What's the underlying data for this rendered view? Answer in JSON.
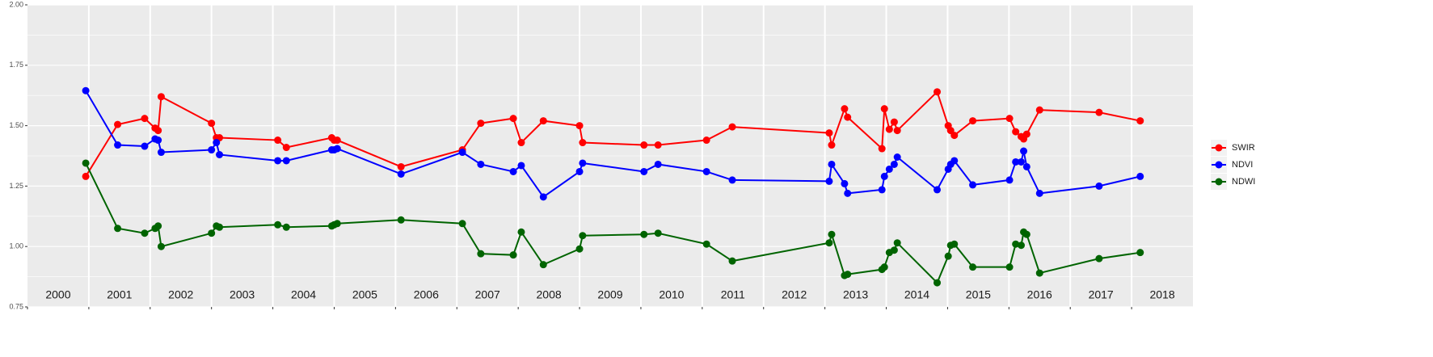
{
  "chart_data": {
    "type": "line",
    "x": [
      2000.95,
      2001.47,
      2001.91,
      2002.08,
      2002.13,
      2002.18,
      2003.0,
      2003.08,
      2003.13,
      2004.08,
      2004.22,
      2004.96,
      2005.0,
      2005.05,
      2006.09,
      2007.09,
      2007.39,
      2007.92,
      2008.05,
      2008.41,
      2009.0,
      2009.05,
      2010.05,
      2010.28,
      2011.07,
      2011.49,
      2013.07,
      2013.11,
      2013.32,
      2013.37,
      2013.93,
      2013.97,
      2014.05,
      2014.13,
      2014.18,
      2014.83,
      2015.01,
      2015.05,
      2015.11,
      2015.41,
      2016.01,
      2016.11,
      2016.2,
      2016.24,
      2016.29,
      2016.5,
      2017.47,
      2018.14
    ],
    "series": [
      {
        "name": "SWIR",
        "color": "#ff0000",
        "values": [
          1.29,
          1.505,
          1.53,
          1.49,
          1.48,
          1.62,
          1.51,
          1.45,
          1.45,
          1.44,
          1.41,
          1.45,
          1.44,
          1.44,
          1.33,
          1.4,
          1.51,
          1.53,
          1.43,
          1.52,
          1.5,
          1.43,
          1.42,
          1.42,
          1.44,
          1.495,
          1.47,
          1.42,
          1.57,
          1.535,
          1.405,
          1.57,
          1.485,
          1.515,
          1.48,
          1.64,
          1.5,
          1.48,
          1.46,
          1.52,
          1.53,
          1.475,
          1.455,
          1.445,
          1.465,
          1.565,
          1.555,
          1.52
        ]
      },
      {
        "name": "NDVI",
        "color": "#0000ff",
        "values": [
          1.645,
          1.42,
          1.415,
          1.445,
          1.44,
          1.39,
          1.4,
          1.43,
          1.38,
          1.355,
          1.355,
          1.4,
          1.4,
          1.405,
          1.3,
          1.39,
          1.34,
          1.31,
          1.335,
          1.205,
          1.31,
          1.345,
          1.31,
          1.34,
          1.31,
          1.275,
          1.27,
          1.34,
          1.26,
          1.22,
          1.235,
          1.29,
          1.32,
          1.34,
          1.37,
          1.235,
          1.32,
          1.34,
          1.355,
          1.255,
          1.275,
          1.35,
          1.35,
          1.395,
          1.33,
          1.22,
          1.25,
          1.29
        ]
      },
      {
        "name": "NDWI",
        "color": "#006400",
        "values": [
          1.345,
          1.075,
          1.055,
          1.075,
          1.085,
          1.0,
          1.055,
          1.085,
          1.08,
          1.09,
          1.08,
          1.085,
          1.09,
          1.095,
          1.11,
          1.095,
          0.97,
          0.965,
          1.06,
          0.925,
          0.99,
          1.045,
          1.05,
          1.055,
          1.01,
          0.94,
          1.015,
          1.05,
          0.88,
          0.885,
          0.905,
          0.915,
          0.975,
          0.985,
          1.015,
          0.85,
          0.96,
          1.005,
          1.01,
          0.915,
          0.915,
          1.01,
          1.005,
          1.06,
          1.05,
          0.89,
          0.95,
          0.975
        ]
      }
    ],
    "xlim": [
      2000,
      2019
    ],
    "xticks": [
      2000,
      2001,
      2002,
      2003,
      2004,
      2005,
      2006,
      2007,
      2008,
      2009,
      2010,
      2011,
      2012,
      2013,
      2014,
      2015,
      2016,
      2017,
      2018
    ],
    "ylim": [
      0.75,
      2.0
    ],
    "yticks": [
      {
        "value": 0.75,
        "label": "0.75"
      },
      {
        "value": 1.0,
        "label": "1.00"
      },
      {
        "value": 1.25,
        "label": "1.25"
      },
      {
        "value": 1.5,
        "label": "1.50"
      },
      {
        "value": 1.75,
        "label": "1.75"
      },
      {
        "value": 2.0,
        "label": "2.00"
      }
    ],
    "grid": true,
    "legend": "right"
  }
}
